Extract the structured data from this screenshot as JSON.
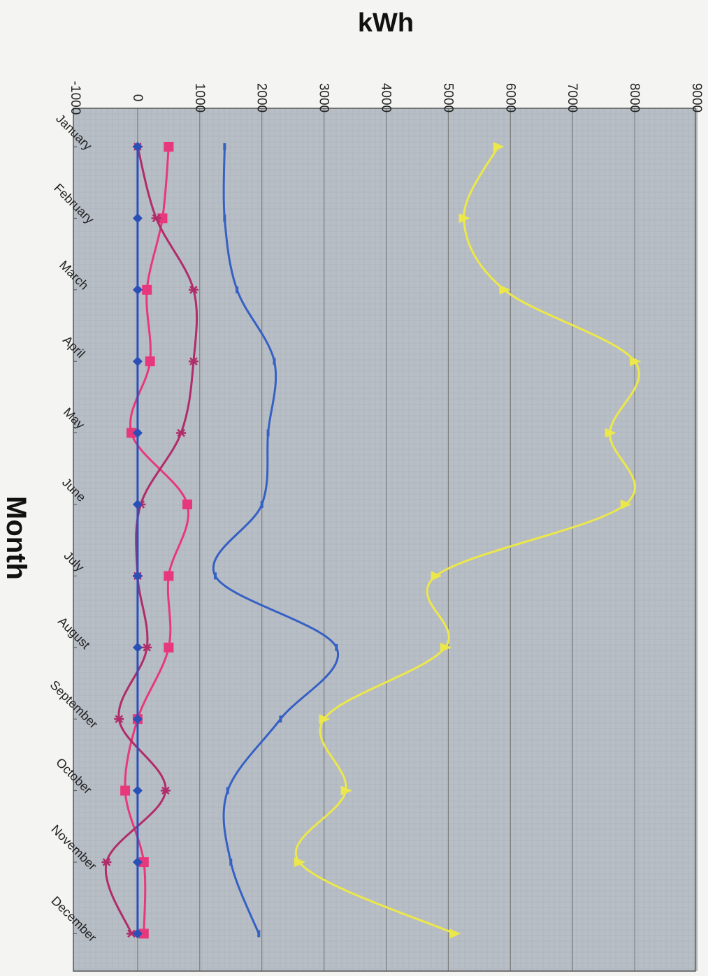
{
  "chart_data": {
    "type": "line",
    "title": "",
    "ylabel": "kWh",
    "xlabel": "Month",
    "ylim": [
      -1000,
      9000
    ],
    "yticks": [
      -1000,
      0,
      1000,
      2000,
      3000,
      4000,
      5000,
      6000,
      7000,
      8000,
      9000
    ],
    "grid": true,
    "legend": "none",
    "categories": [
      "January",
      "February",
      "March",
      "April",
      "May",
      "June",
      "July",
      "August",
      "September",
      "October",
      "November",
      "December"
    ],
    "series": [
      {
        "marker": "triangle",
        "color": "#ece84a",
        "values": [
          5800,
          5250,
          5900,
          8000,
          7600,
          7850,
          4800,
          4950,
          3000,
          3350,
          2600,
          5100
        ]
      },
      {
        "marker": "dash",
        "color": "#3560c4",
        "values": [
          1400,
          1400,
          1600,
          2200,
          2100,
          2000,
          1250,
          3200,
          2300,
          1450,
          1500,
          1950
        ]
      },
      {
        "marker": "square",
        "color": "#e8387c",
        "values": [
          500,
          400,
          150,
          200,
          -100,
          800,
          500,
          500,
          0,
          -200,
          100,
          100
        ]
      },
      {
        "marker": "star",
        "color": "#b02c6a",
        "values": [
          0,
          300,
          900,
          900,
          700,
          50,
          0,
          150,
          -300,
          450,
          -500,
          -100
        ]
      },
      {
        "marker": "diamond",
        "color": "#2a50b8",
        "values": [
          0,
          0,
          0,
          0,
          0,
          0,
          0,
          0,
          0,
          0,
          0,
          0
        ]
      }
    ]
  }
}
